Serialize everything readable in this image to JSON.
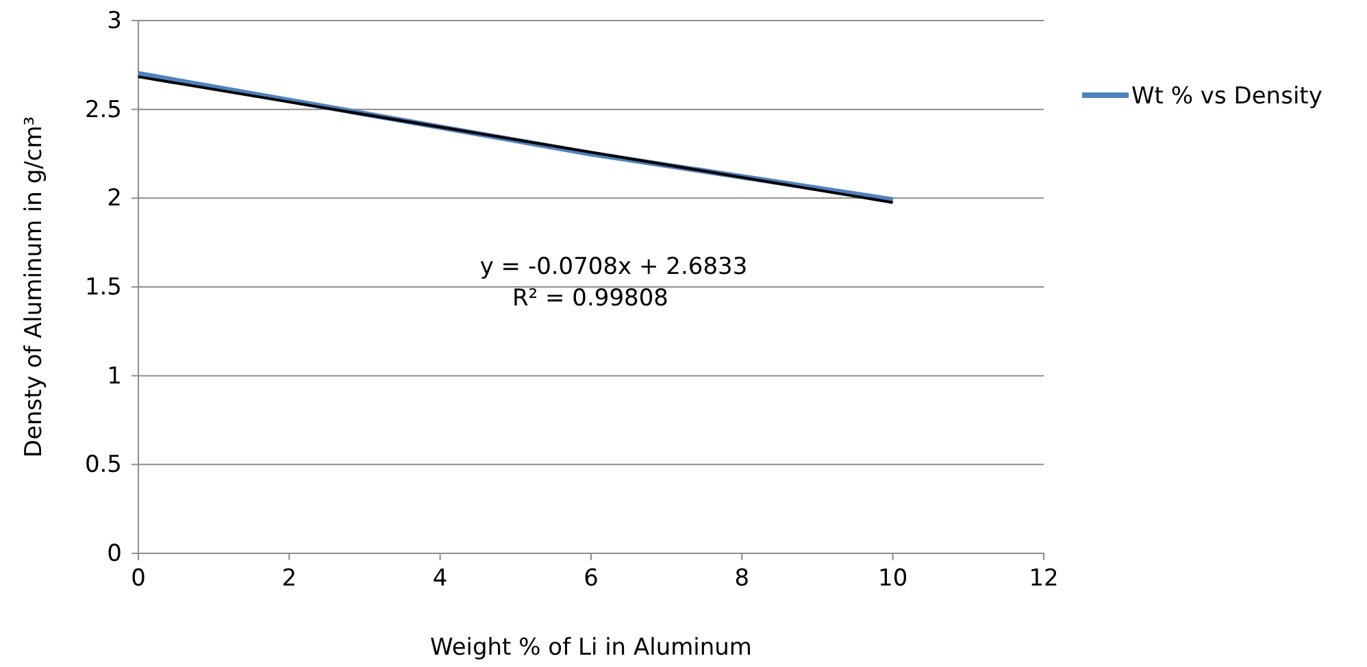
{
  "chart_data": {
    "type": "line",
    "xlabel": "Weight % of Li in Aluminum",
    "ylabel": "Densty of Aluminum in g/cm³",
    "x": [
      0,
      2,
      4,
      6,
      8,
      10
    ],
    "series": [
      {
        "name": "Wt % vs Density",
        "color": "#4f81bd",
        "values": [
          2.7,
          2.55,
          2.4,
          2.25,
          2.12,
          1.99
        ]
      },
      {
        "type": "line",
        "color": "#000000",
        "x": [
          0,
          10
        ],
        "values": [
          2.6833,
          1.9753
        ]
      }
    ],
    "annotations": [
      "y = -0.0708x + 2.6833",
      "R² = 0.99808"
    ],
    "xlim": [
      0,
      12
    ],
    "xticks": [
      0,
      2,
      4,
      6,
      8,
      10,
      12
    ],
    "ylim": [
      0,
      3
    ],
    "yticks": [
      0,
      0.5,
      1,
      1.5,
      2,
      2.5,
      3
    ],
    "grid": "y",
    "legend": "right"
  }
}
